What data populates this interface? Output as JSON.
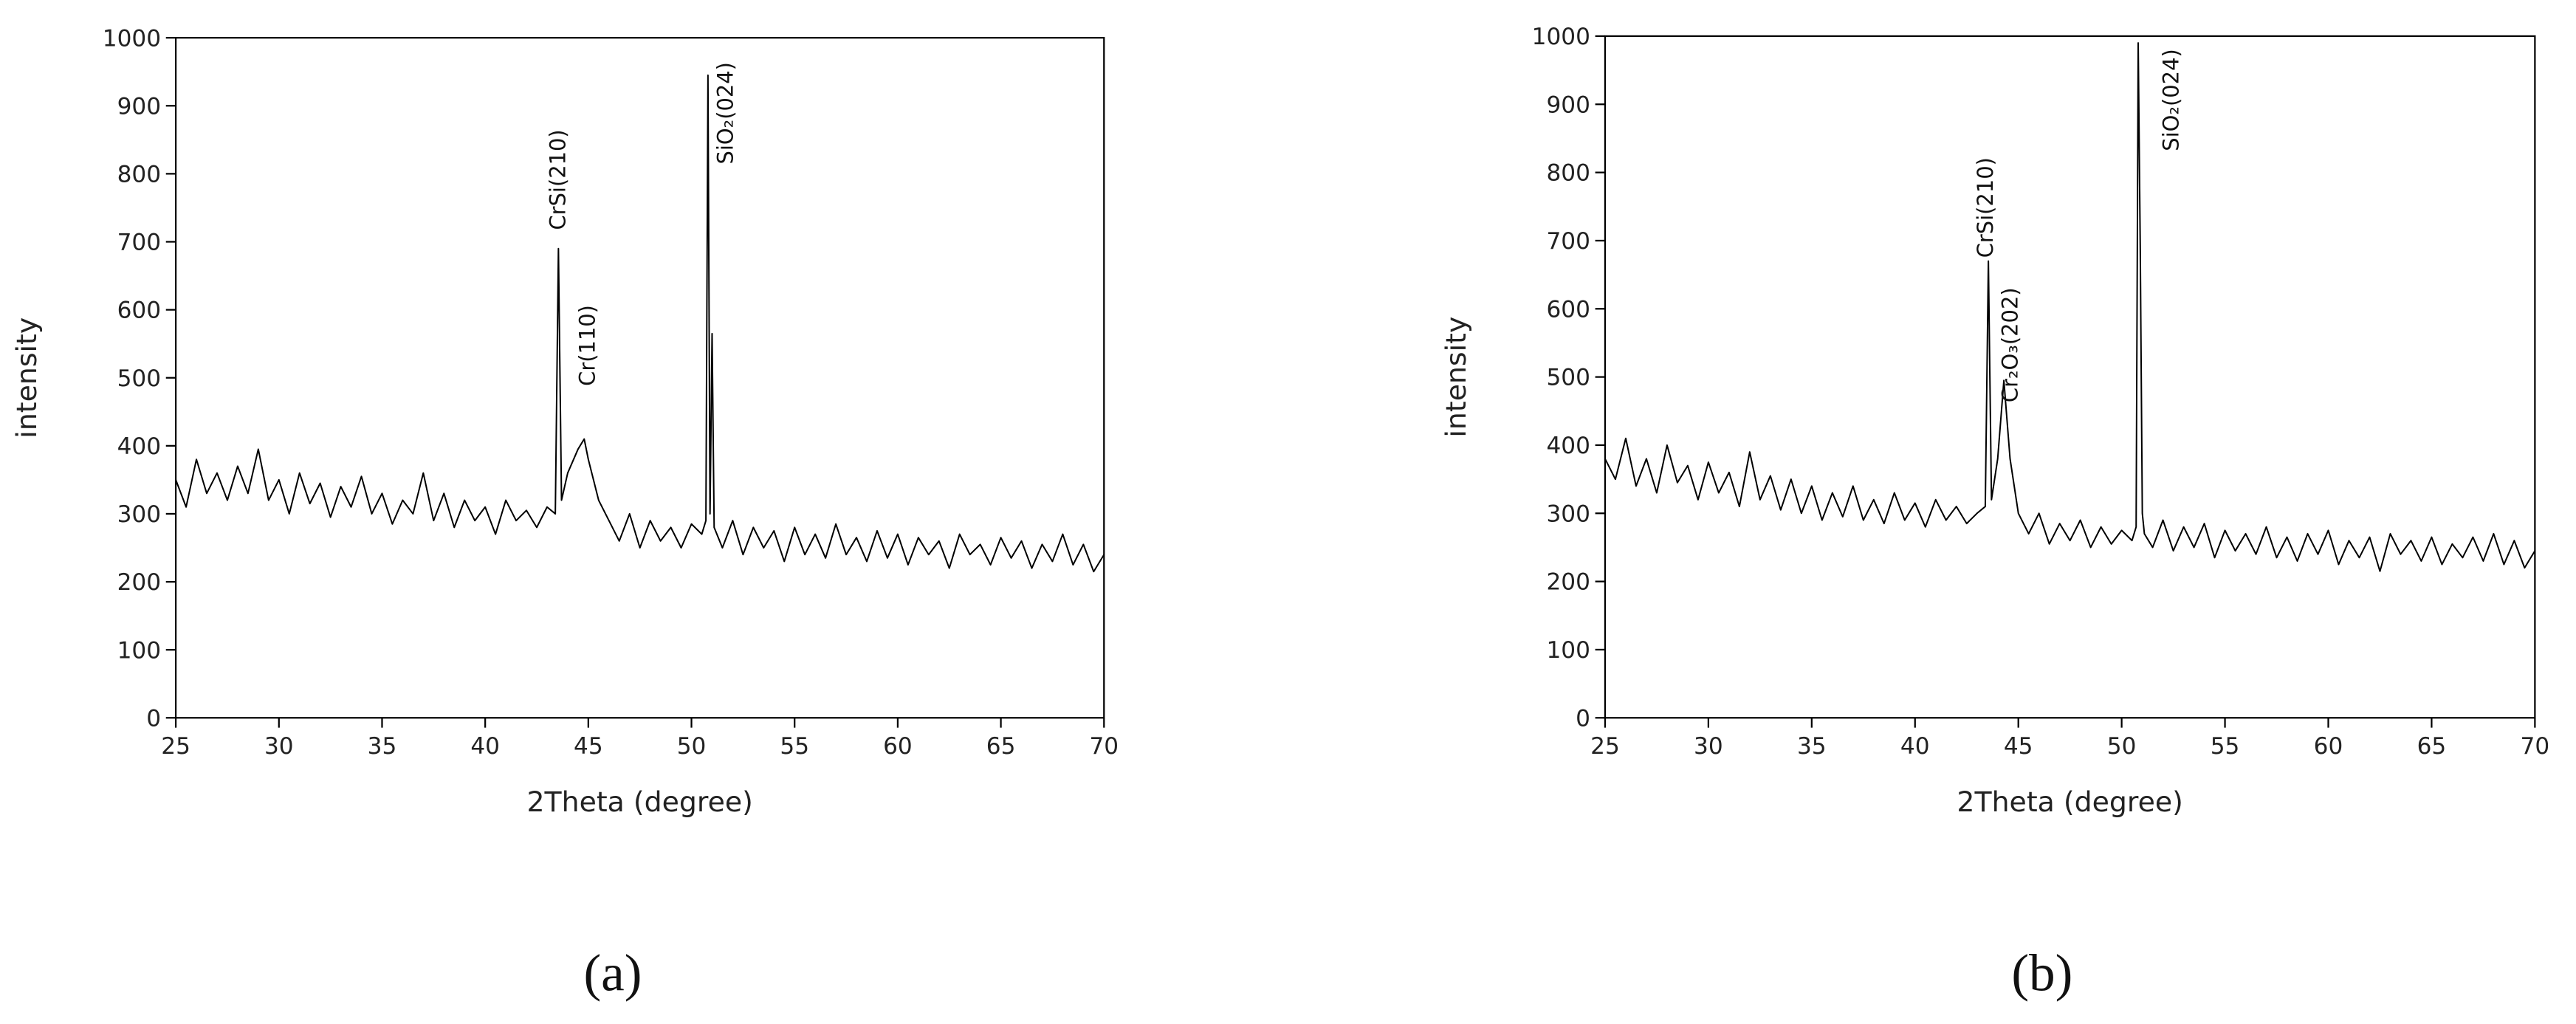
{
  "chart_data": [
    {
      "type": "line",
      "label": "(a)",
      "xlabel": "2Theta (degree)",
      "ylabel": "intensity",
      "annotations": [
        "CrSi(210)",
        "Cr(110)",
        "SiO₂(024)"
      ],
      "color": "#000000",
      "xlim": [
        25,
        70
      ],
      "xticks": [
        25,
        30,
        35,
        40,
        45,
        50,
        55,
        60,
        65,
        70
      ],
      "ylim": [
        0,
        1000
      ],
      "yticks": [
        0,
        100,
        200,
        300,
        400,
        500,
        600,
        700,
        800,
        900,
        1000
      ],
      "x": [
        25,
        25.5,
        26,
        26.5,
        27,
        27.5,
        28,
        28.5,
        29,
        29.5,
        30,
        30.5,
        31,
        31.5,
        32,
        32.5,
        33,
        33.5,
        34,
        34.5,
        35,
        35.5,
        36,
        36.5,
        37,
        37.5,
        38,
        38.5,
        39,
        39.5,
        40,
        40.5,
        41,
        41.5,
        42,
        42.5,
        43,
        43.4,
        43.55,
        43.7,
        44,
        44.5,
        44.8,
        45,
        45.5,
        46,
        46.5,
        47,
        47.5,
        48,
        48.5,
        49,
        49.5,
        50,
        50.5,
        50.7,
        50.8,
        50.9,
        51,
        51.1,
        51.5,
        52,
        52.5,
        53,
        53.5,
        54,
        54.5,
        55,
        55.5,
        56,
        56.5,
        57,
        57.5,
        58,
        58.5,
        59,
        59.5,
        60,
        60.5,
        61,
        61.5,
        62,
        62.5,
        63,
        63.5,
        64,
        64.5,
        65,
        65.5,
        66,
        66.5,
        67,
        67.5,
        68,
        68.5,
        69,
        69.5,
        70
      ],
      "values": [
        350,
        310,
        380,
        330,
        360,
        320,
        370,
        330,
        395,
        320,
        350,
        300,
        360,
        315,
        345,
        295,
        340,
        310,
        355,
        300,
        330,
        285,
        320,
        300,
        360,
        290,
        330,
        280,
        320,
        290,
        310,
        270,
        320,
        290,
        305,
        280,
        310,
        300,
        690,
        320,
        360,
        395,
        410,
        380,
        320,
        290,
        260,
        300,
        250,
        290,
        260,
        280,
        250,
        285,
        270,
        290,
        945,
        300,
        565,
        280,
        250,
        290,
        240,
        280,
        250,
        275,
        230,
        280,
        240,
        270,
        235,
        285,
        240,
        265,
        230,
        275,
        235,
        270,
        225,
        265,
        240,
        260,
        220,
        270,
        240,
        255,
        225,
        265,
        235,
        260,
        220,
        255,
        230,
        270,
        225,
        255,
        215,
        240
      ]
    },
    {
      "type": "line",
      "label": "(b)",
      "xlabel": "2Theta (degree)",
      "ylabel": "intensity",
      "annotations": [
        "CrSi(210)",
        "Cr₂O₃(202)",
        "SiO₂(024)"
      ],
      "color": "#000000",
      "xlim": [
        25,
        70
      ],
      "xticks": [
        25,
        30,
        35,
        40,
        45,
        50,
        55,
        60,
        65,
        70
      ],
      "ylim": [
        0,
        1000
      ],
      "yticks": [
        0,
        100,
        200,
        300,
        400,
        500,
        600,
        700,
        800,
        900,
        1000
      ],
      "x": [
        25,
        25.5,
        26,
        26.5,
        27,
        27.5,
        28,
        28.5,
        29,
        29.5,
        30,
        30.5,
        31,
        31.5,
        32,
        32.5,
        33,
        33.5,
        34,
        34.5,
        35,
        35.5,
        36,
        36.5,
        37,
        37.5,
        38,
        38.5,
        39,
        39.5,
        40,
        40.5,
        41,
        41.5,
        42,
        42.5,
        43,
        43.4,
        43.55,
        43.7,
        44,
        44.3,
        44.6,
        45,
        45.5,
        46,
        46.5,
        47,
        47.5,
        48,
        48.5,
        49,
        49.5,
        50,
        50.5,
        50.7,
        50.8,
        50.9,
        51,
        51.1,
        51.5,
        52,
        52.5,
        53,
        53.5,
        54,
        54.5,
        55,
        55.5,
        56,
        56.5,
        57,
        57.5,
        58,
        58.5,
        59,
        59.5,
        60,
        60.5,
        61,
        61.5,
        62,
        62.5,
        63,
        63.5,
        64,
        64.5,
        65,
        65.5,
        66,
        66.5,
        67,
        67.5,
        68,
        68.5,
        69,
        69.5,
        70
      ],
      "values": [
        380,
        350,
        410,
        340,
        380,
        330,
        400,
        345,
        370,
        320,
        375,
        330,
        360,
        310,
        390,
        320,
        355,
        305,
        350,
        300,
        340,
        290,
        330,
        295,
        340,
        290,
        320,
        285,
        330,
        290,
        315,
        280,
        320,
        290,
        310,
        285,
        300,
        310,
        670,
        320,
        380,
        495,
        380,
        300,
        270,
        300,
        255,
        285,
        260,
        290,
        250,
        280,
        255,
        275,
        260,
        280,
        990,
        690,
        300,
        270,
        250,
        290,
        245,
        280,
        250,
        285,
        235,
        275,
        245,
        270,
        240,
        280,
        235,
        265,
        230,
        270,
        240,
        275,
        225,
        260,
        235,
        265,
        215,
        270,
        240,
        260,
        230,
        265,
        225,
        255,
        235,
        265,
        230,
        270,
        225,
        260,
        220,
        245
      ]
    }
  ]
}
